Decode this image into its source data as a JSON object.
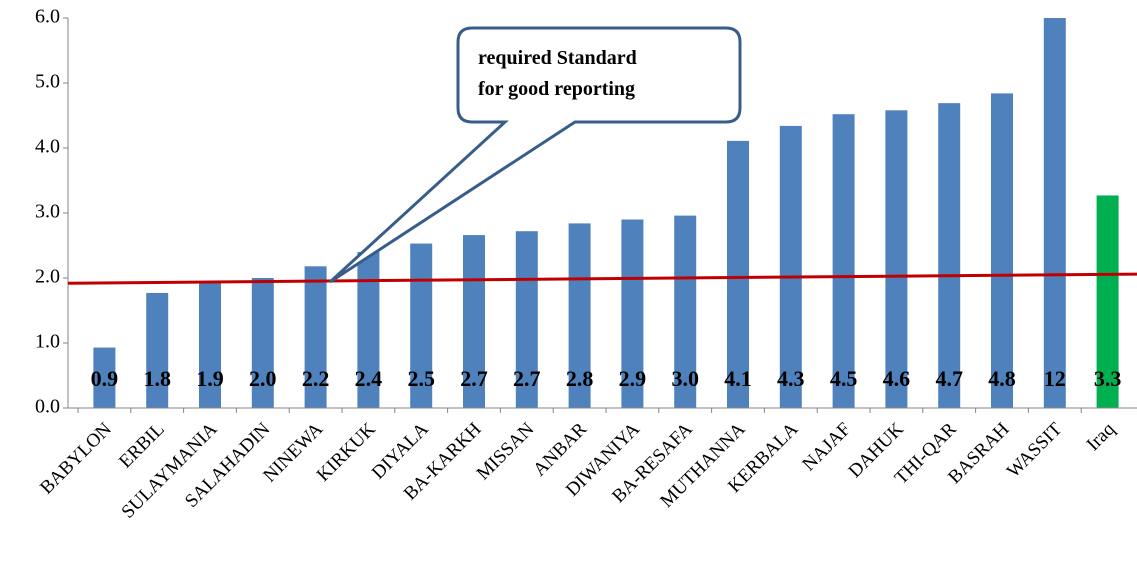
{
  "chart_data": {
    "type": "bar",
    "categories": [
      "BABYLON",
      "ERBIL",
      "SULAYMANIA",
      "SALAHADIN",
      "NINEWA",
      "KIRKUK",
      "DIYALA",
      "BA-KARKH",
      "MISSAN",
      "ANBAR",
      "DIWANIYA",
      "BA-RESAFA",
      "MUTHANNA",
      "KERBALA",
      "NAJAF",
      "DAHUK",
      "THI-QAR",
      "BASRAH",
      "WASSIT",
      "Iraq"
    ],
    "values": [
      0.93,
      1.77,
      1.93,
      2.0,
      2.18,
      2.4,
      2.53,
      2.66,
      2.72,
      2.84,
      2.9,
      2.96,
      4.11,
      4.34,
      4.52,
      4.58,
      4.69,
      4.84,
      12,
      3.27
    ],
    "value_labels": [
      "0.9",
      "1.8",
      "1.9",
      "2.0",
      "2.2",
      "2.4",
      "2.5",
      "2.7",
      "2.7",
      "2.8",
      "2.9",
      "3.0",
      "4.1",
      "4.3",
      "4.5",
      "4.6",
      "4.7",
      "4.8",
      "12",
      "3.3"
    ],
    "colors": [
      "#4f81bd",
      "#4f81bd",
      "#4f81bd",
      "#4f81bd",
      "#4f81bd",
      "#4f81bd",
      "#4f81bd",
      "#4f81bd",
      "#4f81bd",
      "#4f81bd",
      "#4f81bd",
      "#4f81bd",
      "#4f81bd",
      "#4f81bd",
      "#4f81bd",
      "#4f81bd",
      "#4f81bd",
      "#4f81bd",
      "#4f81bd",
      "#00b050"
    ],
    "ylim": [
      0,
      6
    ],
    "yticks": [
      {
        "value": 0,
        "label": "0.0"
      },
      {
        "value": 1,
        "label": "1.0"
      },
      {
        "value": 2,
        "label": "2.0"
      },
      {
        "value": 3,
        "label": "3.0"
      },
      {
        "value": 4,
        "label": "4.0"
      },
      {
        "value": 5,
        "label": "5.0"
      },
      {
        "value": 6,
        "label": "6.0"
      }
    ],
    "reference_line": {
      "start": 1.92,
      "end": 2.06,
      "color": "#c00000"
    },
    "annotation": [
      "required Standard",
      "for good reporting"
    ]
  }
}
